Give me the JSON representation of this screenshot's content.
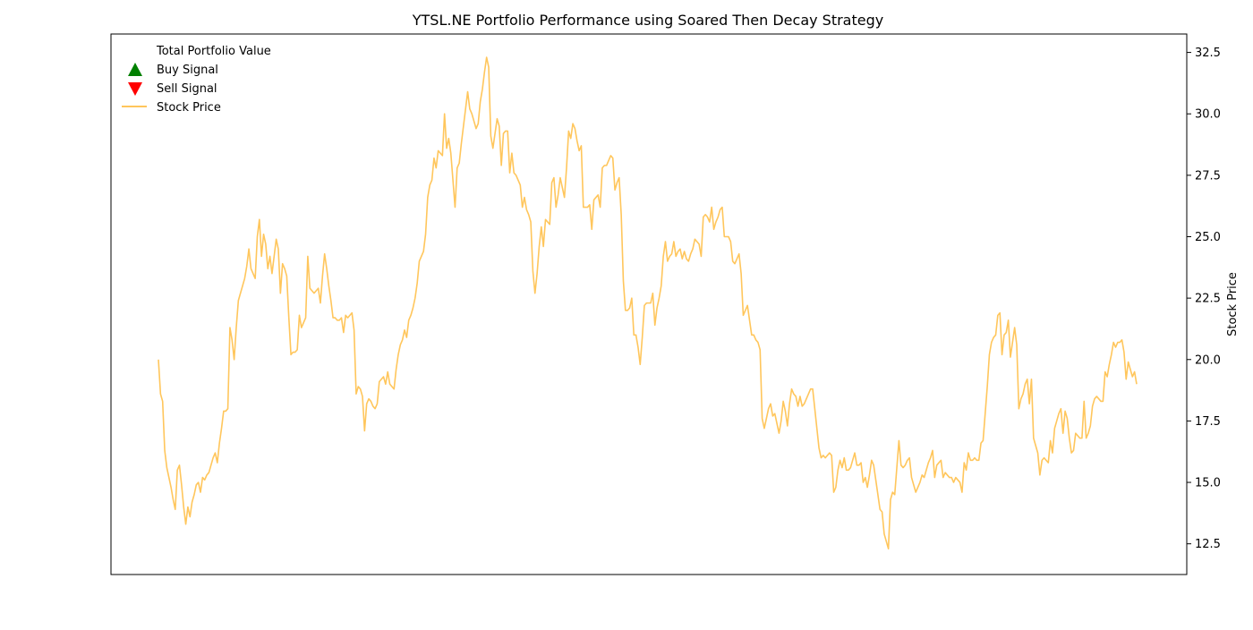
{
  "chart_data": {
    "type": "line",
    "title": "YTSL.NE Portfolio Performance using Soared Then Decay Strategy",
    "xlabel": "",
    "ylabel": "Stock Price",
    "y_axis_side": "right",
    "ylim": [
      11.25,
      33.25
    ],
    "yticks": [
      12.5,
      15.0,
      17.5,
      20.0,
      22.5,
      25.0,
      27.5,
      30.0,
      32.5
    ],
    "ytick_labels": [
      "12.5",
      "15.0",
      "17.5",
      "20.0",
      "22.5",
      "25.0",
      "27.5",
      "30.0",
      "32.5"
    ],
    "x_ticks_shown": false,
    "grid": false,
    "legend": {
      "placement": "top-left",
      "entries": [
        {
          "label": "Total Portfolio Value",
          "marker": "none",
          "color": ""
        },
        {
          "label": "Buy Signal",
          "marker": "triangle-up",
          "color": "#008000"
        },
        {
          "label": "Sell Signal",
          "marker": "triangle-down",
          "color": "#ff0000"
        },
        {
          "label": "Stock Price",
          "marker": "line",
          "color": "#ffc65c"
        }
      ]
    },
    "series": [
      {
        "name": "Stock Price",
        "color": "#ffc65c",
        "values": [
          20.0,
          18.6,
          18.3,
          16.3,
          15.6,
          15.2,
          14.8,
          14.3,
          13.9,
          15.5,
          15.7,
          14.9,
          14.0,
          13.3,
          14.0,
          13.6,
          14.2,
          14.5,
          14.9,
          15.0,
          14.6,
          15.2,
          15.1,
          15.3,
          15.4,
          15.7,
          16.0,
          16.2,
          15.8,
          16.6,
          17.2,
          17.9,
          17.9,
          18.0,
          21.3,
          20.8,
          20.0,
          21.3,
          22.4,
          22.7,
          23.0,
          23.3,
          23.8,
          24.5,
          23.7,
          23.5,
          23.3,
          25.0,
          25.7,
          24.2,
          25.1,
          24.7,
          23.7,
          24.2,
          23.5,
          24.2,
          24.9,
          24.5,
          22.7,
          23.9,
          23.7,
          23.4,
          21.7,
          20.2,
          20.3,
          20.3,
          20.4,
          21.8,
          21.3,
          21.5,
          21.7,
          24.2,
          22.9,
          22.8,
          22.7,
          22.8,
          22.9,
          22.3,
          23.4,
          24.3,
          23.7,
          23.0,
          22.4,
          21.7,
          21.7,
          21.6,
          21.6,
          21.7,
          21.1,
          21.8,
          21.7,
          21.8,
          21.9,
          21.2,
          18.6,
          18.9,
          18.8,
          18.5,
          17.1,
          18.2,
          18.4,
          18.3,
          18.1,
          18.0,
          18.2,
          19.1,
          19.2,
          19.3,
          19.0,
          19.5,
          19.0,
          18.9,
          18.8,
          19.6,
          20.2,
          20.6,
          20.8,
          21.2,
          20.9,
          21.6,
          21.8,
          22.1,
          22.5,
          23.1,
          24.0,
          24.2,
          24.4,
          25.1,
          26.6,
          27.1,
          27.3,
          28.2,
          27.8,
          28.5,
          28.4,
          28.3,
          30.0,
          28.6,
          29.0,
          28.4,
          27.3,
          26.2,
          27.8,
          28.0,
          28.8,
          29.5,
          30.2,
          30.9,
          30.2,
          30.0,
          29.7,
          29.4,
          29.6,
          30.5,
          31.0,
          31.7,
          32.3,
          31.9,
          29.1,
          28.6,
          29.2,
          29.8,
          29.5,
          27.9,
          29.2,
          29.3,
          29.3,
          27.6,
          28.4,
          27.6,
          27.5,
          27.3,
          27.1,
          26.2,
          26.6,
          26.1,
          25.9,
          25.6,
          23.6,
          22.7,
          23.5,
          24.6,
          25.4,
          24.6,
          25.7,
          25.6,
          25.5,
          27.2,
          27.4,
          26.2,
          26.7,
          27.4,
          27.0,
          26.6,
          27.8,
          29.3,
          29.0,
          29.6,
          29.4,
          28.9,
          28.5,
          28.7,
          26.2,
          26.2,
          26.2,
          26.3,
          25.3,
          26.5,
          26.6,
          26.7,
          26.2,
          27.8,
          27.9,
          27.9,
          28.1,
          28.3,
          28.2,
          26.9,
          27.2,
          27.4,
          25.9,
          23.2,
          22.0,
          22.0,
          22.1,
          22.5,
          21.0,
          21.0,
          20.5,
          19.8,
          20.9,
          22.2,
          22.3,
          22.3,
          22.3,
          22.7,
          21.4,
          22.1,
          22.5,
          23.0,
          24.2,
          24.8,
          24.0,
          24.2,
          24.3,
          24.8,
          24.2,
          24.4,
          24.5,
          24.1,
          24.4,
          24.1,
          24.0,
          24.3,
          24.5,
          24.9,
          24.8,
          24.7,
          24.2,
          25.8,
          25.9,
          25.8,
          25.6,
          26.2,
          25.3,
          25.6,
          25.8,
          26.1,
          26.2,
          25.0,
          25.0,
          25.0,
          24.8,
          24.0,
          23.9,
          24.1,
          24.3,
          23.5,
          21.8,
          22.0,
          22.2,
          21.6,
          21.0,
          21.0,
          20.8,
          20.7,
          20.4,
          17.6,
          17.2,
          17.6,
          18.0,
          18.2,
          17.7,
          17.8,
          17.4,
          17.0,
          17.5,
          18.3,
          17.9,
          17.3,
          18.2,
          18.8,
          18.6,
          18.5,
          18.1,
          18.5,
          18.1,
          18.2,
          18.4,
          18.6,
          18.8,
          18.8,
          18.0,
          17.2,
          16.4,
          16.0,
          16.1,
          16.0,
          16.1,
          16.2,
          16.1,
          14.6,
          14.8,
          15.5,
          15.9,
          15.6,
          16.0,
          15.5,
          15.5,
          15.6,
          15.9,
          16.2,
          15.7,
          15.7,
          15.8,
          15.0,
          15.2,
          14.8,
          15.3,
          15.9,
          15.7,
          15.1,
          14.5,
          13.9,
          13.8,
          12.9,
          12.6,
          12.3,
          14.3,
          14.6,
          14.5,
          15.6,
          16.7,
          15.7,
          15.6,
          15.7,
          15.9,
          16.0,
          15.2,
          14.9,
          14.6,
          14.8,
          15.0,
          15.3,
          15.2,
          15.5,
          15.8,
          16.0,
          16.3,
          15.2,
          15.7,
          15.8,
          15.9,
          15.2,
          15.4,
          15.3,
          15.2,
          15.2,
          15.0,
          15.2,
          15.1,
          15.0,
          14.6,
          15.8,
          15.5,
          16.2,
          15.9,
          15.9,
          16.0,
          15.9,
          15.9,
          16.6,
          16.7,
          17.8,
          18.9,
          20.2,
          20.7,
          20.9,
          21.0,
          21.8,
          21.9,
          20.2,
          21.0,
          21.1,
          21.6,
          20.1,
          20.7,
          21.3,
          20.6,
          18.0,
          18.4,
          18.6,
          19.0,
          19.2,
          18.2,
          19.2,
          16.8,
          16.5,
          16.2,
          15.3,
          15.9,
          16.0,
          15.9,
          15.8,
          16.7,
          16.2,
          17.2,
          17.5,
          17.8,
          18.0,
          17.0,
          17.9,
          17.6,
          16.8,
          16.2,
          16.3,
          17.0,
          16.9,
          16.8,
          16.8,
          18.3,
          16.8,
          17.0,
          17.3,
          18.1,
          18.4,
          18.5,
          18.4,
          18.3,
          18.3,
          19.5,
          19.3,
          19.8,
          20.2,
          20.7,
          20.5,
          20.7,
          20.7,
          20.8,
          20.3,
          19.2,
          19.9,
          19.6,
          19.3,
          19.5,
          19.0
        ]
      }
    ]
  }
}
